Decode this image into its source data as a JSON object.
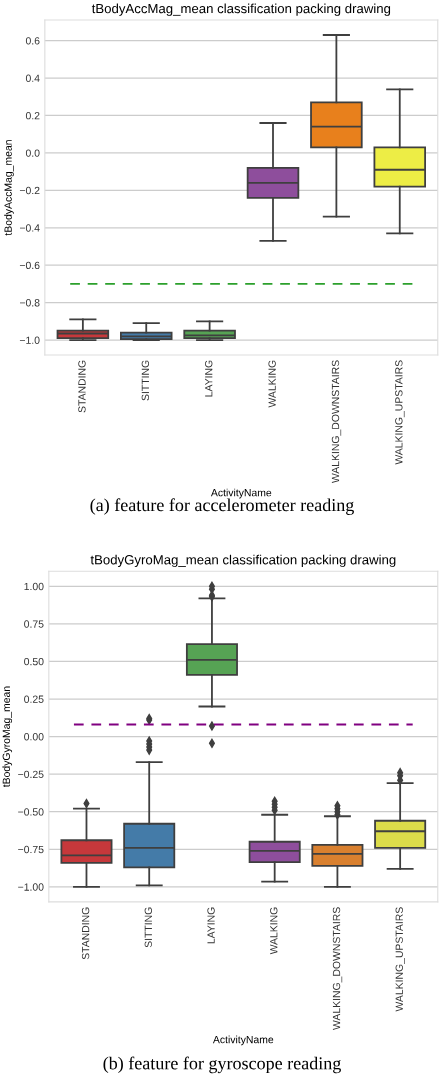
{
  "chart_data": [
    {
      "type": "box",
      "title": "tBodyAccMag_mean classification packing drawing",
      "xlabel": "ActivityName",
      "ylabel": "tBodyAccMag_mean",
      "categories": [
        "STANDING",
        "SITTING",
        "LAYING",
        "WALKING",
        "WALKING_DOWNSTAIRS",
        "WALKING_UPSTAIRS"
      ],
      "colors": [
        "#c6383b",
        "#447ba8",
        "#56a354",
        "#8e4e9c",
        "#e8801c",
        "#eded45"
      ],
      "boxes": [
        {
          "low": -1.0,
          "q1": -0.99,
          "median": -0.965,
          "q3": -0.95,
          "high": -0.89
        },
        {
          "low": -1.0,
          "q1": -0.995,
          "median": -0.98,
          "q3": -0.96,
          "high": -0.91
        },
        {
          "low": -1.0,
          "q1": -0.99,
          "median": -0.975,
          "q3": -0.95,
          "high": -0.9
        },
        {
          "low": -0.47,
          "q1": -0.24,
          "median": -0.16,
          "q3": -0.08,
          "high": 0.16
        },
        {
          "low": -0.34,
          "q1": 0.03,
          "median": 0.14,
          "q3": 0.27,
          "high": 0.63
        },
        {
          "low": -0.43,
          "q1": -0.18,
          "median": -0.09,
          "q3": 0.03,
          "high": 0.34
        }
      ],
      "ylim": [
        -1.08,
        0.71
      ],
      "yticks": [
        {
          "value": -1.0,
          "label": "−1.0"
        },
        {
          "value": -0.8,
          "label": "−0.8"
        },
        {
          "value": -0.6,
          "label": "−0.6"
        },
        {
          "value": -0.4,
          "label": "−0.4"
        },
        {
          "value": -0.2,
          "label": "−0.2"
        },
        {
          "value": 0.0,
          "label": "0.0"
        },
        {
          "value": 0.2,
          "label": "0.2"
        },
        {
          "value": 0.4,
          "label": "0.4"
        },
        {
          "value": 0.6,
          "label": "0.6"
        }
      ],
      "ref_lines": [
        {
          "axis": "y",
          "value": -0.7,
          "color": "#2ca02c",
          "line_style": "dashed"
        }
      ],
      "grid": "y",
      "annotations": [
        "(a) feature for accelerometer reading"
      ]
    },
    {
      "type": "box",
      "title": "tBodyGyroMag_mean classification packing drawing",
      "xlabel": "ActivityName",
      "ylabel": "tBodyGyroMag_mean",
      "categories": [
        "STANDING",
        "SITTING",
        "LAYING",
        "WALKING",
        "WALKING_DOWNSTAIRS",
        "WALKING_UPSTAIRS"
      ],
      "colors": [
        "#c6383b",
        "#447ba8",
        "#56a354",
        "#8e4e9c",
        "#d9802f",
        "#dcdc4a"
      ],
      "boxes": [
        {
          "low": -1.0,
          "q1": -0.84,
          "median": -0.79,
          "q3": -0.69,
          "high": -0.48,
          "outliers": [
            -0.445
          ]
        },
        {
          "low": -0.99,
          "q1": -0.87,
          "median": -0.74,
          "q3": -0.58,
          "high": -0.17,
          "outliers": [
            0.11,
            0.12,
            -0.03,
            -0.05,
            -0.07,
            -0.09
          ]
        },
        {
          "low": 0.2,
          "q1": 0.41,
          "median": 0.51,
          "q3": 0.615,
          "high": 0.92,
          "outliers": [
            1.0,
            0.98,
            0.94,
            0.93,
            0.07,
            -0.045
          ]
        },
        {
          "low": -0.965,
          "q1": -0.835,
          "median": -0.76,
          "q3": -0.7,
          "high": -0.52,
          "outliers": [
            -0.43,
            -0.45,
            -0.47,
            -0.49
          ]
        },
        {
          "low": -1.0,
          "q1": -0.86,
          "median": -0.78,
          "q3": -0.72,
          "high": -0.53,
          "outliers": [
            -0.46,
            -0.48,
            -0.5,
            -0.52
          ]
        },
        {
          "low": -0.88,
          "q1": -0.74,
          "median": -0.63,
          "q3": -0.56,
          "high": -0.31,
          "outliers": [
            -0.24,
            -0.26,
            -0.29
          ]
        }
      ],
      "ylim": [
        -1.1,
        1.1
      ],
      "yticks": [
        {
          "value": -1.0,
          "label": "−1.00"
        },
        {
          "value": -0.75,
          "label": "−0.75"
        },
        {
          "value": -0.5,
          "label": "−0.50"
        },
        {
          "value": -0.25,
          "label": "−0.25"
        },
        {
          "value": 0.0,
          "label": "0.00"
        },
        {
          "value": 0.25,
          "label": "0.25"
        },
        {
          "value": 0.5,
          "label": "0.50"
        },
        {
          "value": 0.75,
          "label": "0.75"
        },
        {
          "value": 1.0,
          "label": "1.00"
        }
      ],
      "ref_lines": [
        {
          "axis": "y",
          "value": 0.08,
          "color": "#800080",
          "line_style": "dashed"
        }
      ],
      "grid": "y",
      "annotations": [
        "(b) feature for gyroscope reading"
      ]
    }
  ]
}
